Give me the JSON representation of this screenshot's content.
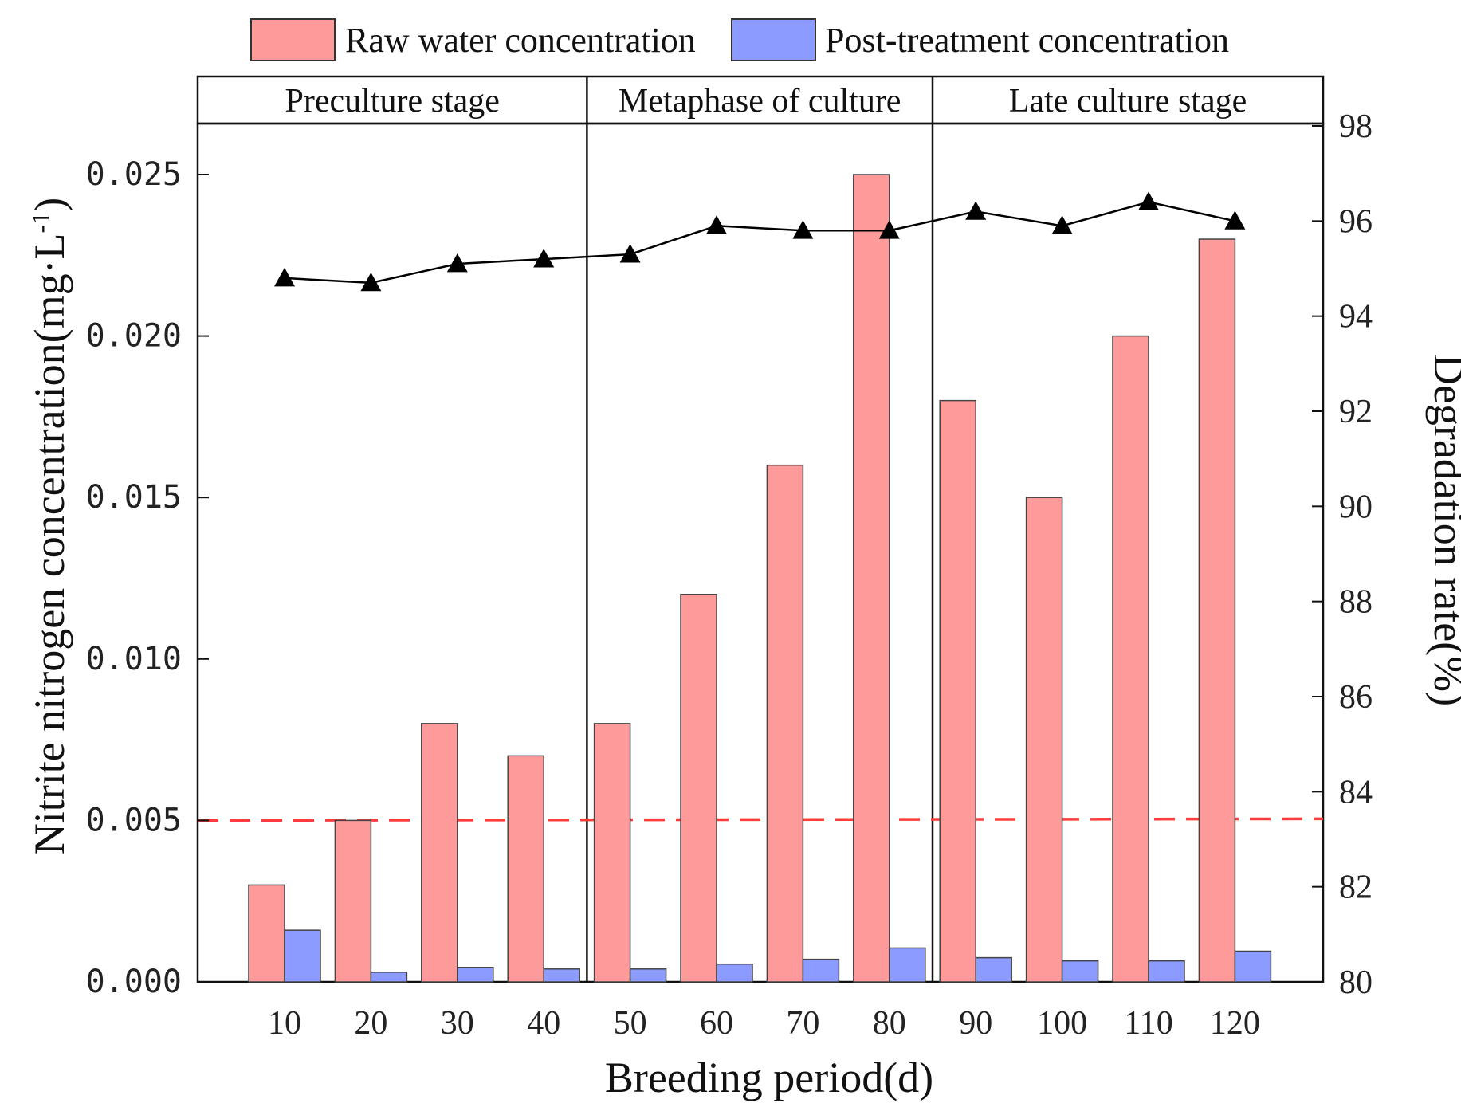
{
  "chart_data": {
    "type": "bar",
    "title": "",
    "xlabel": "Breeding period(d)",
    "ylabel_main": "Nitrite nitrogen concentration(mg·L",
    "ylabel_sup": "-1",
    "ylabel_close": ")",
    "y2label": "Degradation rate(%)",
    "categories": [
      "10",
      "20",
      "30",
      "40",
      "50",
      "60",
      "70",
      "80",
      "90",
      "100",
      "110",
      "120"
    ],
    "series": [
      {
        "name": "Raw water concentration",
        "kind": "bar",
        "axis": "left",
        "color": "#FF9A9A",
        "values": [
          0.003,
          0.005,
          0.008,
          0.007,
          0.008,
          0.012,
          0.016,
          0.025,
          0.018,
          0.015,
          0.02,
          0.023
        ]
      },
      {
        "name": "Post-treatment concentration",
        "kind": "bar",
        "axis": "left",
        "color": "#8B9BFF",
        "values": [
          0.0016,
          0.0003,
          0.00045,
          0.0004,
          0.0004,
          0.00055,
          0.0007,
          0.00105,
          0.00075,
          0.00065,
          0.00065,
          0.00095
        ]
      },
      {
        "name": "Degradation rate",
        "kind": "line",
        "axis": "right",
        "color": "#000000",
        "marker": "triangle",
        "values": [
          94.8,
          94.7,
          95.1,
          95.2,
          95.3,
          95.9,
          95.8,
          95.8,
          96.2,
          95.9,
          96.4,
          96.0
        ]
      }
    ],
    "ylim": [
      0,
      0.0255
    ],
    "y2lim": [
      80,
      98
    ],
    "yticks": [
      "0.000",
      "0.005",
      "0.010",
      "0.015",
      "0.020",
      "0.025"
    ],
    "ytick_values": [
      0,
      0.005,
      0.01,
      0.015,
      0.02,
      0.025
    ],
    "y2ticks": [
      "80",
      "82",
      "84",
      "86",
      "88",
      "90",
      "92",
      "94",
      "96",
      "98"
    ],
    "y2tick_values": [
      80,
      82,
      84,
      86,
      88,
      90,
      92,
      94,
      96,
      98
    ],
    "reference_line": {
      "value": 0.005,
      "color": "#FF3B3B",
      "style": "dashed"
    },
    "stages": [
      {
        "label": "Preculture stage",
        "from_category": 0,
        "to_category": 3
      },
      {
        "label": "Metaphase of culture",
        "from_category": 4,
        "to_category": 7
      },
      {
        "label": "Late culture stage",
        "from_category": 8,
        "to_category": 11
      }
    ],
    "legend": {
      "placement": "top",
      "entries": [
        "Raw water concentration",
        "Post-treatment concentration"
      ]
    },
    "grid": false
  }
}
